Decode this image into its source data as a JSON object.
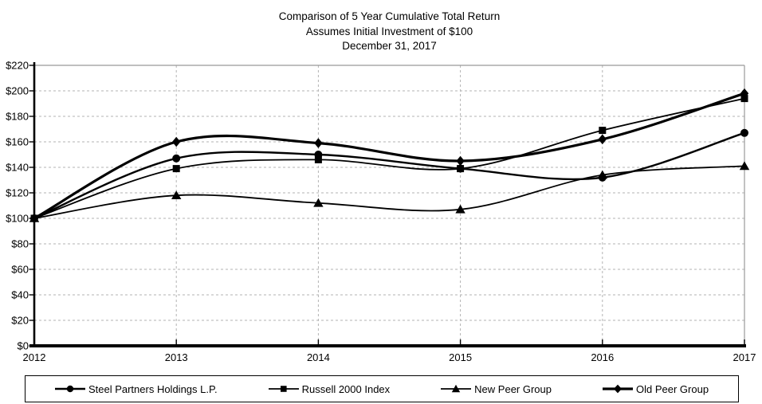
{
  "title": {
    "line1": "Comparison of 5 Year Cumulative Total Return",
    "line2": "Assumes Initial Investment of $100",
    "line3": "December 31, 2017"
  },
  "chart_data": {
    "type": "line",
    "x": [
      2012,
      2013,
      2014,
      2015,
      2016,
      2017
    ],
    "x_tick_labels": [
      "2012",
      "2013",
      "2014",
      "2015",
      "2016",
      "2017"
    ],
    "y_tick_labels": [
      "$220",
      "$200",
      "$180",
      "$160",
      "$140",
      "$120",
      "$100",
      "$80",
      "$60",
      "$40",
      "$20",
      "$0"
    ],
    "ylim": [
      0,
      220
    ],
    "ytick_step": 20,
    "grid": {
      "horizontal": "dashed",
      "vertical": "dashed"
    },
    "legend_position": "bottom",
    "line_color": "#000000",
    "gridline_color": "#b3b3b3",
    "plot_border_color": "#999999",
    "series": [
      {
        "name": "Steel Partners Holdings L.P.",
        "marker": "circle",
        "values": [
          100,
          147,
          150,
          139,
          132,
          167
        ]
      },
      {
        "name": "Russell 2000 Index",
        "marker": "square",
        "values": [
          100,
          139,
          146,
          139,
          169,
          194
        ]
      },
      {
        "name": "New Peer Group",
        "marker": "triangle",
        "values": [
          100,
          118,
          112,
          107,
          134,
          141
        ]
      },
      {
        "name": "Old Peer Group",
        "marker": "diamond",
        "values": [
          100,
          160,
          159,
          145,
          162,
          198
        ]
      }
    ]
  }
}
